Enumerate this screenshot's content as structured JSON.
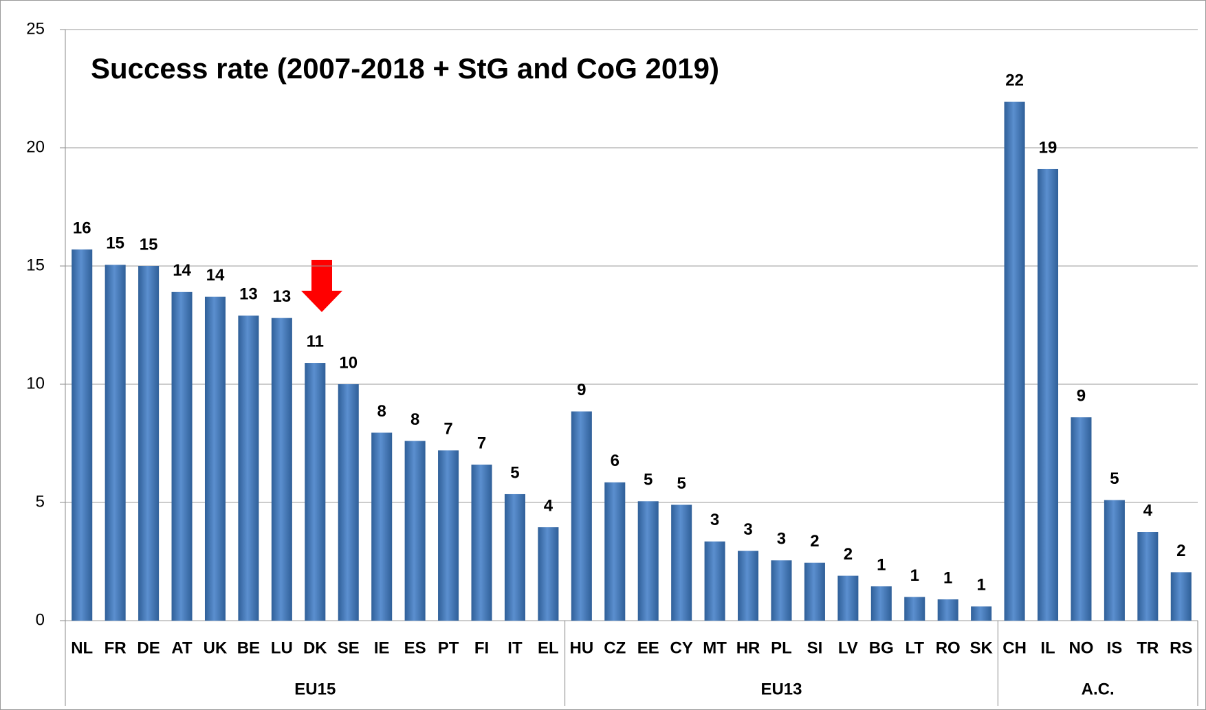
{
  "chart_data": {
    "type": "bar",
    "title": "Success rate (2007-2018 + StG and CoG 2019)",
    "categories": [
      "NL",
      "FR",
      "DE",
      "AT",
      "UK",
      "BE",
      "LU",
      "DK",
      "SE",
      "IE",
      "ES",
      "PT",
      "FI",
      "IT",
      "EL",
      "HU",
      "CZ",
      "EE",
      "CY",
      "MT",
      "HR",
      "PL",
      "SI",
      "LV",
      "BG",
      "LT",
      "RO",
      "SK",
      "CH",
      "IL",
      "NO",
      "IS",
      "TR",
      "RS"
    ],
    "values": [
      15.7,
      15.05,
      15.0,
      13.9,
      13.7,
      12.9,
      12.8,
      10.9,
      10.0,
      7.95,
      7.6,
      7.2,
      6.6,
      5.35,
      3.95,
      8.85,
      5.85,
      5.05,
      4.9,
      3.35,
      2.95,
      2.55,
      2.45,
      1.9,
      1.45,
      1.0,
      0.9,
      0.6,
      21.95,
      19.1,
      8.6,
      5.1,
      3.75,
      2.05
    ],
    "value_labels": [
      "16",
      "15",
      "15",
      "14",
      "14",
      "13",
      "13",
      "11",
      "10",
      "8",
      "8",
      "7",
      "7",
      "5",
      "4",
      "9",
      "6",
      "5",
      "5",
      "3",
      "3",
      "3",
      "2",
      "2",
      "1",
      "1",
      "1",
      "1",
      "22",
      "19",
      "9",
      "5",
      "4",
      "2"
    ],
    "groups": [
      {
        "label": "EU15",
        "span": 15
      },
      {
        "label": "EU13",
        "span": 13
      },
      {
        "label": "A.C.",
        "span": 6
      }
    ],
    "color": "#4f81bd",
    "ylim": [
      0,
      25
    ],
    "yticks": [
      0,
      5,
      10,
      15,
      20,
      25
    ],
    "grid": true
  }
}
